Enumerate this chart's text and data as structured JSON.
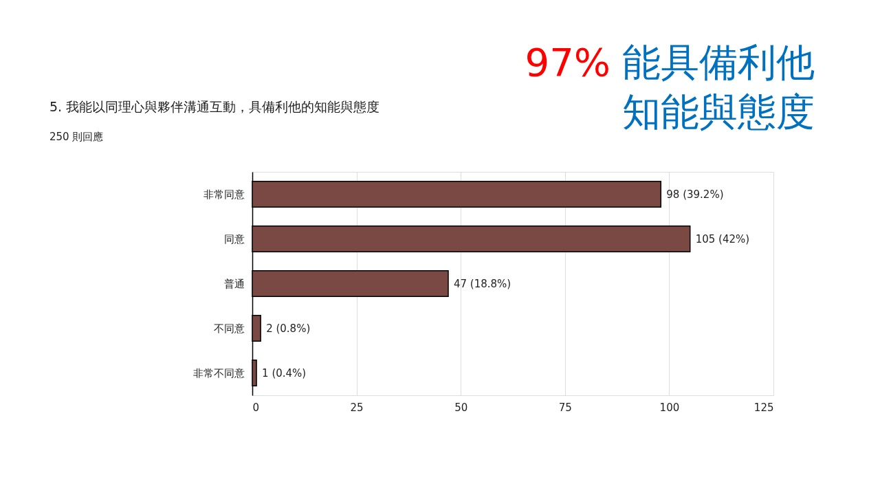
{
  "chart_data": {
    "type": "bar",
    "orientation": "horizontal",
    "title": "5. 我能以同理心與夥伴溝通互動，具備利他的知能與態度",
    "subtitle": "250 則回應",
    "categories": [
      "非常同意",
      "同意",
      "普通",
      "不同意",
      "非常不同意"
    ],
    "values": [
      98,
      105,
      47,
      2,
      1
    ],
    "value_labels": [
      "98 (39.2%)",
      "105 (42%)",
      "47 (18.8%)",
      "2 (0.8%)",
      "1 (0.4%)"
    ],
    "color": "#7b4944",
    "xlim": [
      0,
      125
    ],
    "xticks": [
      0,
      25,
      50,
      75,
      100,
      125
    ],
    "grid": "x",
    "annotations": [
      "97%",
      "能具備利他",
      "知能與態度"
    ]
  }
}
